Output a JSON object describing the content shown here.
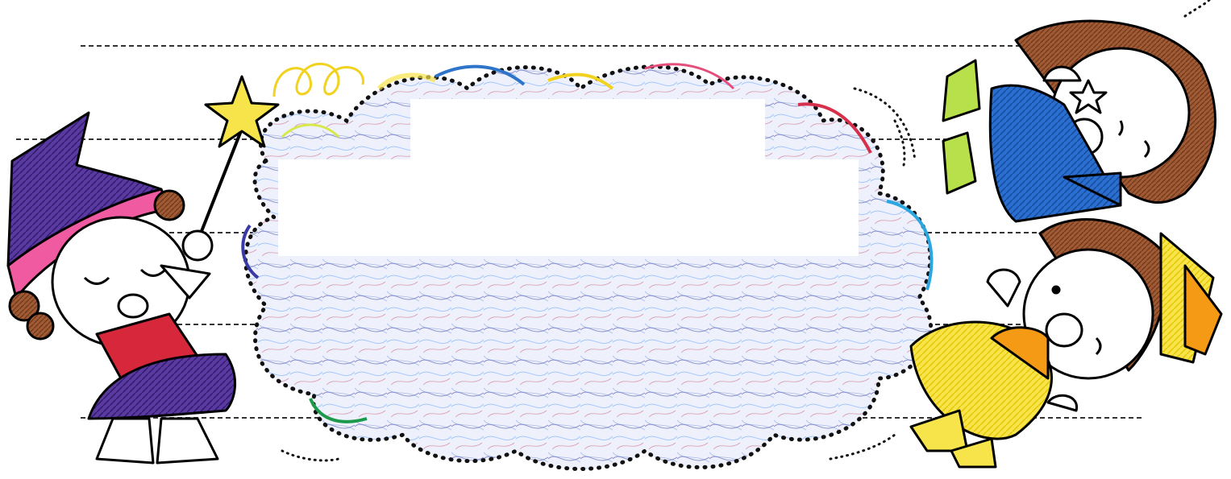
{
  "artwork": {
    "kind": "crayon-coloring-illustration",
    "characters": [
      "witch-girl-purple-hat",
      "witch-girl-blue",
      "witch-girl-yellow"
    ],
    "cloud_fill_colors": [
      "#3b3f9e",
      "#5a7fd0",
      "#c03050",
      "#7fb6ff"
    ],
    "cloud_outline_colors": [
      "#f1d21f",
      "#2e74c9",
      "#e54e7a",
      "#d6304a",
      "#2aa6e0",
      "#1a9a4a",
      "#3a3aa6",
      "#111111"
    ],
    "accent_colors": {
      "purple": "#4a2c8a",
      "pink": "#f05aa0",
      "red": "#d6283a",
      "blue": "#1f5fc2",
      "yellow": "#f7df1e",
      "orange": "#f59a14",
      "green": "#b7e04a",
      "brown": "#8a4a2a",
      "skin": "#ffffff",
      "lines": "#000000"
    }
  }
}
